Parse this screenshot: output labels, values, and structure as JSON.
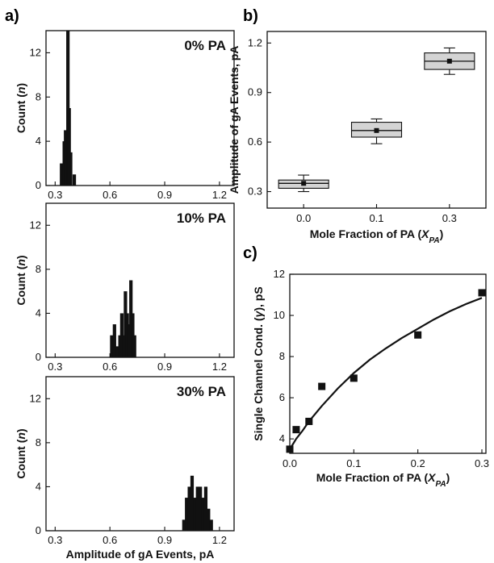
{
  "panel_labels": {
    "a": "a)",
    "b": "b)",
    "c": "c)"
  },
  "chart_data": [
    {
      "id": "a1",
      "type": "bar",
      "annotation": "0% PA",
      "xlim": [
        0.25,
        1.28
      ],
      "ylim": [
        0,
        14
      ],
      "xticks": [
        "0.3",
        "0.6",
        "0.9",
        "1.2"
      ],
      "yticks": [
        "0",
        "4",
        "8",
        "12"
      ],
      "ylabel_parts": [
        "Count (",
        "n",
        ")"
      ],
      "xlabel": "",
      "bars": [
        {
          "x": 0.335,
          "y": 2
        },
        {
          "x": 0.343,
          "y": 1
        },
        {
          "x": 0.35,
          "y": 4
        },
        {
          "x": 0.357,
          "y": 5
        },
        {
          "x": 0.364,
          "y": 4
        },
        {
          "x": 0.37,
          "y": 14
        },
        {
          "x": 0.377,
          "y": 7
        },
        {
          "x": 0.385,
          "y": 3
        },
        {
          "x": 0.405,
          "y": 1
        }
      ]
    },
    {
      "id": "a2",
      "type": "bar",
      "annotation": "10% PA",
      "xlim": [
        0.25,
        1.28
      ],
      "ylim": [
        0,
        14
      ],
      "xticks": [
        "0.3",
        "0.6",
        "0.9",
        "1.2"
      ],
      "yticks": [
        "0",
        "4",
        "8",
        "12"
      ],
      "ylabel_parts": [
        "Count (",
        "n",
        ")"
      ],
      "xlabel": "",
      "bars": [
        {
          "x": 0.61,
          "y": 2
        },
        {
          "x": 0.625,
          "y": 3
        },
        {
          "x": 0.64,
          "y": 1
        },
        {
          "x": 0.655,
          "y": 2
        },
        {
          "x": 0.665,
          "y": 4
        },
        {
          "x": 0.675,
          "y": 2
        },
        {
          "x": 0.685,
          "y": 6
        },
        {
          "x": 0.695,
          "y": 4
        },
        {
          "x": 0.705,
          "y": 3
        },
        {
          "x": 0.715,
          "y": 7
        },
        {
          "x": 0.725,
          "y": 4
        },
        {
          "x": 0.735,
          "y": 2
        }
      ]
    },
    {
      "id": "a3",
      "type": "bar",
      "annotation": "30% PA",
      "xlim": [
        0.25,
        1.28
      ],
      "ylim": [
        0,
        14
      ],
      "xticks": [
        "0.3",
        "0.6",
        "0.9",
        "1.2"
      ],
      "yticks": [
        "0",
        "4",
        "8",
        "12"
      ],
      "ylabel_parts": [
        "Count (",
        "n",
        ")"
      ],
      "xlabel": "Amplitude of gA Events, pA",
      "bars": [
        {
          "x": 1.005,
          "y": 1
        },
        {
          "x": 1.02,
          "y": 3
        },
        {
          "x": 1.035,
          "y": 4
        },
        {
          "x": 1.05,
          "y": 5
        },
        {
          "x": 1.065,
          "y": 3
        },
        {
          "x": 1.08,
          "y": 4
        },
        {
          "x": 1.095,
          "y": 4
        },
        {
          "x": 1.11,
          "y": 3
        },
        {
          "x": 1.125,
          "y": 4
        },
        {
          "x": 1.14,
          "y": 2
        },
        {
          "x": 1.155,
          "y": 1
        }
      ]
    },
    {
      "id": "b",
      "type": "box",
      "categories": [
        "0.0",
        "0.1",
        "0.3"
      ],
      "yticks": [
        "0.3",
        "0.6",
        "0.9",
        "1.2"
      ],
      "ylim": [
        0.2,
        1.27
      ],
      "ylabel": "Amplitude of gA Events, pA",
      "xlabel_parts": [
        "Mole Fraction of PA (",
        "X",
        "PA",
        ")"
      ],
      "boxes": [
        {
          "q1": 0.32,
          "median": 0.35,
          "q3": 0.37,
          "min": 0.3,
          "max": 0.4,
          "mean": 0.35
        },
        {
          "q1": 0.63,
          "median": 0.67,
          "q3": 0.72,
          "min": 0.59,
          "max": 0.74,
          "mean": 0.67
        },
        {
          "q1": 1.04,
          "median": 1.09,
          "q3": 1.14,
          "min": 1.01,
          "max": 1.17,
          "mean": 1.09
        }
      ]
    },
    {
      "id": "c",
      "type": "scatter",
      "xlim": [
        0,
        0.3
      ],
      "ylim": [
        3.3,
        12
      ],
      "xticks": [
        "0.0",
        "0.1",
        "0.2",
        "0.3"
      ],
      "yticks": [
        "4",
        "6",
        "8",
        "10",
        "12"
      ],
      "ylabel_parts": [
        "Single Channel Cond. (",
        "γ",
        "), pS"
      ],
      "xlabel_parts": [
        "Mole Fraction of PA (",
        "X",
        "PA",
        ")"
      ],
      "points": [
        {
          "x": 0.0,
          "y": 3.5
        },
        {
          "x": 0.01,
          "y": 4.45
        },
        {
          "x": 0.03,
          "y": 4.85
        },
        {
          "x": 0.05,
          "y": 6.55
        },
        {
          "x": 0.1,
          "y": 6.95
        },
        {
          "x": 0.2,
          "y": 9.05
        },
        {
          "x": 0.3,
          "y": 11.1
        }
      ],
      "fit_curve": {
        "x": [
          0,
          0.005,
          0.01,
          0.02,
          0.03,
          0.05,
          0.075,
          0.1,
          0.125,
          0.15,
          0.175,
          0.2,
          0.225,
          0.25,
          0.275,
          0.3
        ],
        "y": [
          3.5,
          3.75,
          4.0,
          4.4,
          4.85,
          5.6,
          6.45,
          7.2,
          7.85,
          8.4,
          8.9,
          9.35,
          9.8,
          10.2,
          10.55,
          10.85
        ]
      }
    }
  ]
}
